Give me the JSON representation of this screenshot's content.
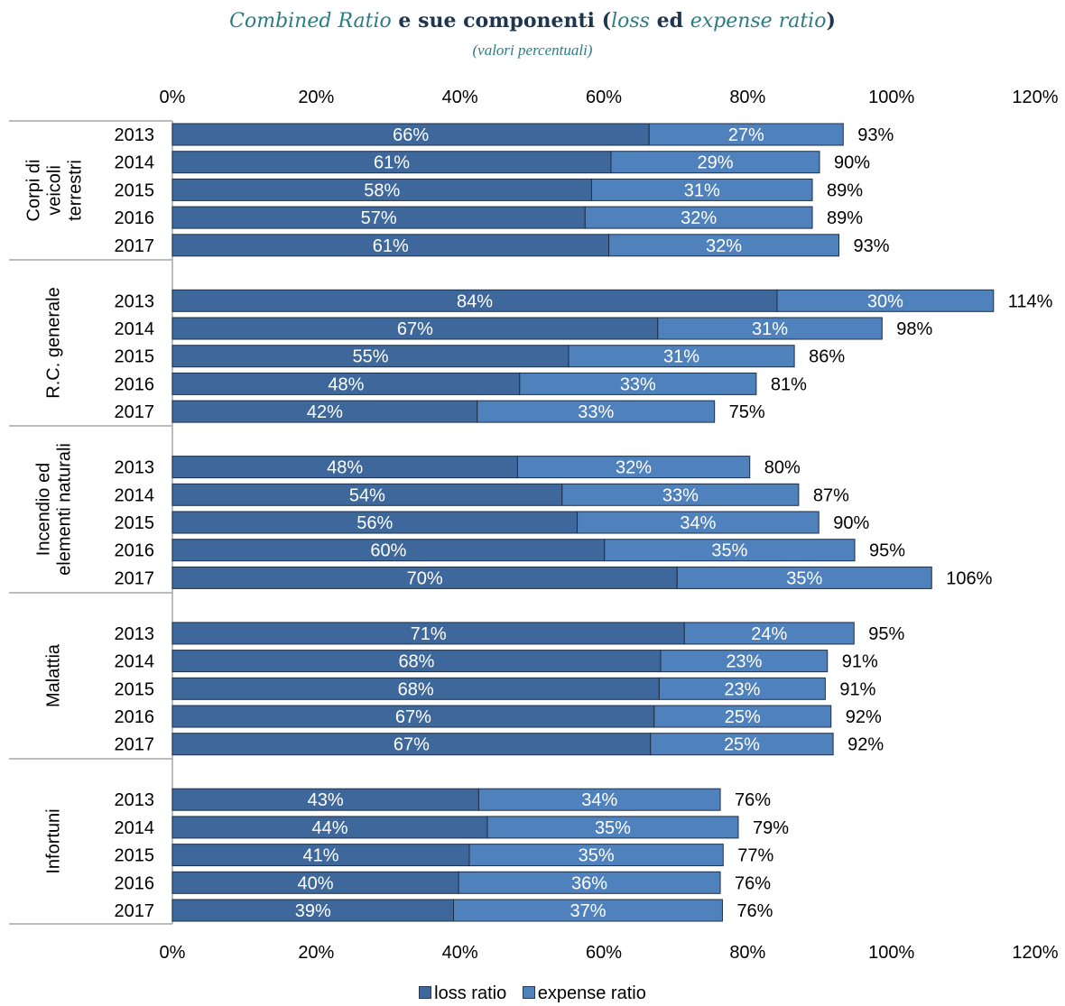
{
  "title": {
    "part1": "Combined Ratio",
    "part2": " e sue componenti (",
    "part3": "loss",
    "part4": " ed ",
    "part5": "expense ratio",
    "part6": ")"
  },
  "subtitle": "(valori percentuali)",
  "colors": {
    "loss": "#3e689c",
    "expense": "#4f81bd",
    "border": "#1f2f44",
    "axis": "#a6a6a6",
    "title_teal": "#2b7c84"
  },
  "chart_data": {
    "type": "bar",
    "orientation": "horizontal",
    "stacked": true,
    "xlim": [
      0,
      120
    ],
    "x_ticks": [
      "0%",
      "20%",
      "40%",
      "60%",
      "80%",
      "100%",
      "120%"
    ],
    "grid": false,
    "legend_position": "bottom",
    "series": [
      {
        "name": "loss ratio",
        "color": "#3e689c"
      },
      {
        "name": "expense ratio",
        "color": "#4f81bd"
      }
    ],
    "groups": [
      {
        "lines": [
          "Corpi di",
          "veicoli",
          "terrestri"
        ],
        "rows": [
          {
            "year": "2013",
            "loss": 66.3,
            "expense": 27.0,
            "loss_label": "66%",
            "expense_label": "27%",
            "total_label": "93%"
          },
          {
            "year": "2014",
            "loss": 61.0,
            "expense": 29.0,
            "loss_label": "61%",
            "expense_label": "29%",
            "total_label": "90%"
          },
          {
            "year": "2015",
            "loss": 58.3,
            "expense": 30.7,
            "loss_label": "58%",
            "expense_label": "31%",
            "total_label": "89%"
          },
          {
            "year": "2016",
            "loss": 57.4,
            "expense": 31.6,
            "loss_label": "57%",
            "expense_label": "32%",
            "total_label": "89%"
          },
          {
            "year": "2017",
            "loss": 60.7,
            "expense": 32.0,
            "loss_label": "61%",
            "expense_label": "32%",
            "total_label": "93%"
          }
        ]
      },
      {
        "lines": [
          "R.C. generale"
        ],
        "rows": [
          {
            "year": "2013",
            "loss": 84.1,
            "expense": 30.1,
            "loss_label": "84%",
            "expense_label": "30%",
            "total_label": "114%"
          },
          {
            "year": "2014",
            "loss": 67.5,
            "expense": 31.2,
            "loss_label": "67%",
            "expense_label": "31%",
            "total_label": "98%"
          },
          {
            "year": "2015",
            "loss": 55.1,
            "expense": 31.4,
            "loss_label": "55%",
            "expense_label": "31%",
            "total_label": "86%"
          },
          {
            "year": "2016",
            "loss": 48.3,
            "expense": 32.9,
            "loss_label": "48%",
            "expense_label": "33%",
            "total_label": "81%"
          },
          {
            "year": "2017",
            "loss": 42.4,
            "expense": 33.0,
            "loss_label": "42%",
            "expense_label": "33%",
            "total_label": "75%"
          }
        ]
      },
      {
        "lines": [
          "Incendio ed",
          "elementi naturali"
        ],
        "rows": [
          {
            "year": "2013",
            "loss": 48.0,
            "expense": 32.3,
            "loss_label": "48%",
            "expense_label": "32%",
            "total_label": "80%"
          },
          {
            "year": "2014",
            "loss": 54.2,
            "expense": 32.9,
            "loss_label": "54%",
            "expense_label": "33%",
            "total_label": "87%"
          },
          {
            "year": "2015",
            "loss": 56.3,
            "expense": 33.6,
            "loss_label": "56%",
            "expense_label": "34%",
            "total_label": "90%"
          },
          {
            "year": "2016",
            "loss": 60.1,
            "expense": 34.8,
            "loss_label": "60%",
            "expense_label": "35%",
            "total_label": "95%"
          },
          {
            "year": "2017",
            "loss": 70.2,
            "expense": 35.4,
            "loss_label": "70%",
            "expense_label": "35%",
            "total_label": "106%"
          }
        ]
      },
      {
        "lines": [
          "Malattia"
        ],
        "rows": [
          {
            "year": "2013",
            "loss": 71.2,
            "expense": 23.6,
            "loss_label": "71%",
            "expense_label": "24%",
            "total_label": "95%"
          },
          {
            "year": "2014",
            "loss": 67.9,
            "expense": 23.2,
            "loss_label": "68%",
            "expense_label": "23%",
            "total_label": "91%"
          },
          {
            "year": "2015",
            "loss": 67.7,
            "expense": 23.1,
            "loss_label": "68%",
            "expense_label": "23%",
            "total_label": "91%"
          },
          {
            "year": "2016",
            "loss": 67.0,
            "expense": 24.6,
            "loss_label": "67%",
            "expense_label": "25%",
            "total_label": "92%"
          },
          {
            "year": "2017",
            "loss": 66.5,
            "expense": 25.4,
            "loss_label": "67%",
            "expense_label": "25%",
            "total_label": "92%"
          }
        ]
      },
      {
        "lines": [
          "Infortuni"
        ],
        "rows": [
          {
            "year": "2013",
            "loss": 42.6,
            "expense": 33.6,
            "loss_label": "43%",
            "expense_label": "34%",
            "total_label": "76%"
          },
          {
            "year": "2014",
            "loss": 43.8,
            "expense": 34.9,
            "loss_label": "44%",
            "expense_label": "35%",
            "total_label": "79%"
          },
          {
            "year": "2015",
            "loss": 41.3,
            "expense": 35.3,
            "loss_label": "41%",
            "expense_label": "35%",
            "total_label": "77%"
          },
          {
            "year": "2016",
            "loss": 39.8,
            "expense": 36.4,
            "loss_label": "40%",
            "expense_label": "36%",
            "total_label": "76%"
          },
          {
            "year": "2017",
            "loss": 39.1,
            "expense": 37.4,
            "loss_label": "39%",
            "expense_label": "37%",
            "total_label": "76%"
          }
        ]
      }
    ]
  }
}
